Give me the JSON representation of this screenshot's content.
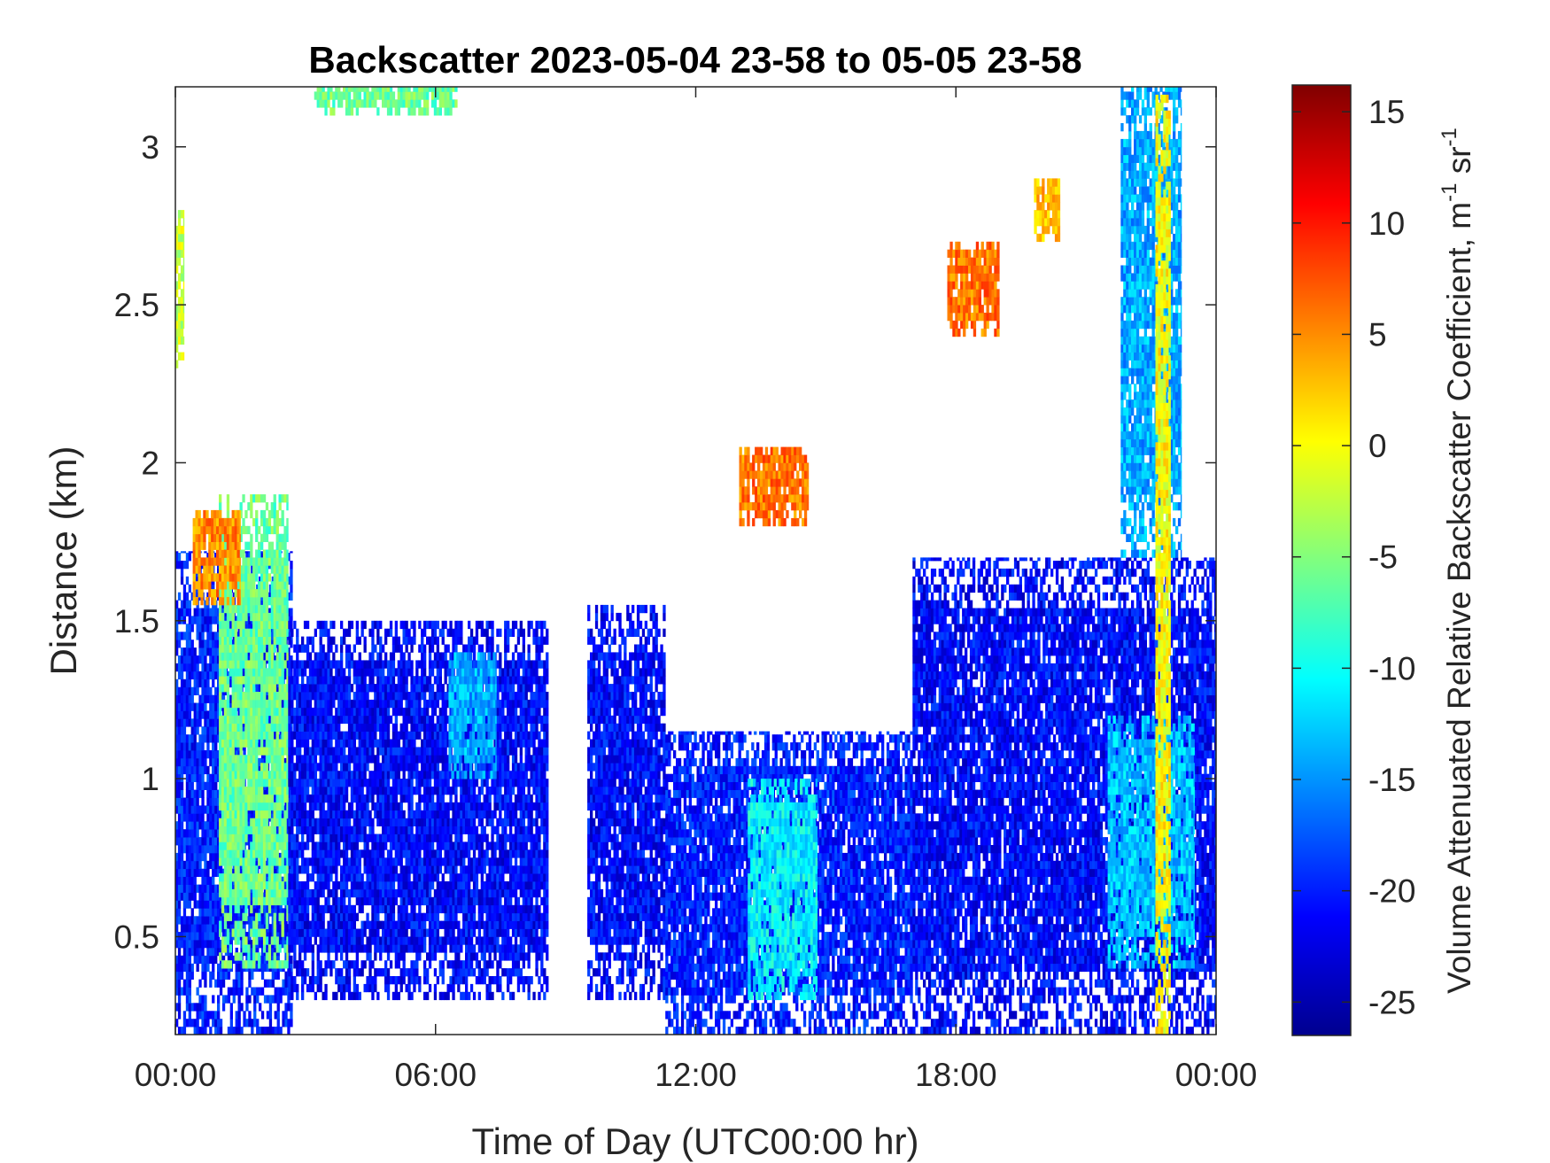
{
  "chart_data": {
    "type": "heatmap",
    "title": "Backscatter 2023-05-04 23-58 to 05-05 23-58",
    "xlabel": "Time of Day (UTC00:00 hr)",
    "ylabel": "Distance (km)",
    "x_ticks": [
      "00:00",
      "06:00",
      "12:00",
      "18:00",
      "00:00"
    ],
    "x_tick_hours": [
      0,
      6,
      12,
      18,
      24
    ],
    "xlim_hours": [
      0,
      24
    ],
    "y_ticks": [
      "0.5",
      "1",
      "1.5",
      "2",
      "2.5",
      "3"
    ],
    "y_tick_values": [
      0.5,
      1,
      1.5,
      2,
      2.5,
      3
    ],
    "ylim_km": [
      0.19,
      3.19
    ],
    "colorbar": {
      "label_main": "Volume Attenuated Relative Backscatter Coefficient, m",
      "label_sup1": "-1",
      "label_mid": " sr",
      "label_sup2": "-1",
      "ticks": [
        "15",
        "10",
        "5",
        "0",
        "-5",
        "-10",
        "-15",
        "-20",
        "-25"
      ],
      "tick_values": [
        15,
        10,
        5,
        0,
        -5,
        -10,
        -15,
        -20,
        -25
      ],
      "clim": [
        -26.5,
        16.2
      ],
      "colormap": "jet"
    },
    "grid": false,
    "cloud_regions": [
      {
        "t0": 0.0,
        "t1": 2.7,
        "z0": 0.19,
        "z1": 1.72,
        "v": -20,
        "note": "boundary layer"
      },
      {
        "t0": 1.0,
        "t1": 2.6,
        "z0": 0.4,
        "z1": 1.9,
        "v": -6
      },
      {
        "t0": 0.4,
        "t1": 1.5,
        "z0": 1.55,
        "z1": 1.85,
        "v": 5
      },
      {
        "t0": 2.6,
        "t1": 8.6,
        "z0": 0.3,
        "z1": 1.5,
        "v": -21
      },
      {
        "t0": 6.3,
        "t1": 7.4,
        "z0": 1.0,
        "z1": 1.4,
        "v": -14
      },
      {
        "t0": 9.5,
        "t1": 11.3,
        "z0": 0.3,
        "z1": 1.55,
        "v": -21
      },
      {
        "t0": 11.3,
        "t1": 17.0,
        "z0": 0.19,
        "z1": 1.15,
        "v": -20
      },
      {
        "t0": 13.2,
        "t1": 14.8,
        "z0": 0.3,
        "z1": 1.0,
        "v": -11
      },
      {
        "t0": 13.0,
        "t1": 14.6,
        "z0": 1.8,
        "z1": 2.05,
        "v": 6
      },
      {
        "t0": 17.0,
        "t1": 24.0,
        "z0": 0.19,
        "z1": 1.7,
        "v": -21
      },
      {
        "t0": 21.5,
        "t1": 23.5,
        "z0": 0.4,
        "z1": 1.2,
        "v": -13
      },
      {
        "t0": 17.8,
        "t1": 19.0,
        "z0": 2.4,
        "z1": 2.7,
        "v": 6
      },
      {
        "t0": 19.8,
        "t1": 20.4,
        "z0": 2.7,
        "z1": 2.9,
        "v": 3
      },
      {
        "t0": 21.8,
        "t1": 23.2,
        "z0": 1.7,
        "z1": 3.19,
        "v": -14
      },
      {
        "t0": 22.6,
        "t1": 22.95,
        "z0": 0.19,
        "z1": 3.19,
        "v": 0
      },
      {
        "t0": 0.0,
        "t1": 0.2,
        "z0": 2.3,
        "z1": 2.8,
        "v": -2
      },
      {
        "t0": 3.2,
        "t1": 6.5,
        "z0": 3.1,
        "z1": 3.19,
        "v": -6
      }
    ]
  }
}
